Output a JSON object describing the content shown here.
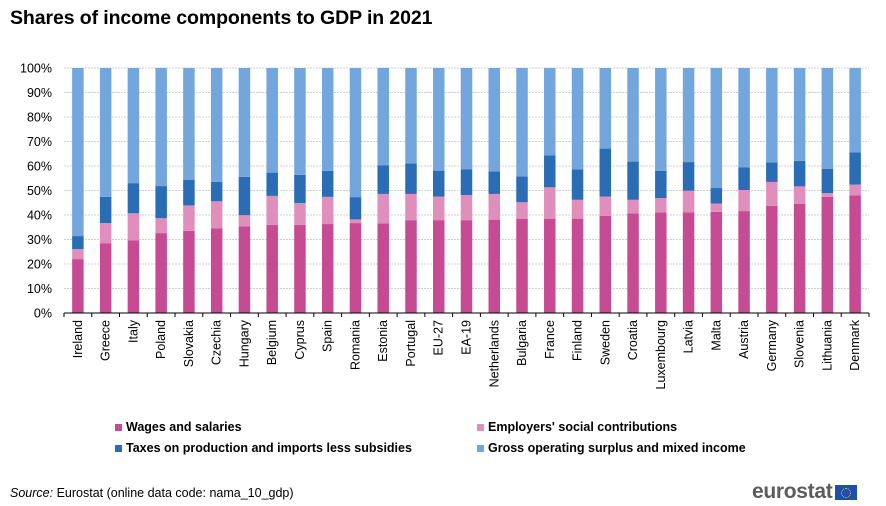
{
  "chart_data": {
    "type": "bar",
    "stacked": true,
    "percent_stacked": true,
    "title": "Shares of income components to GDP in 2021",
    "xlabel": "",
    "ylabel": "",
    "ylim": [
      0,
      100
    ],
    "yticks": [
      "0%",
      "10%",
      "20%",
      "30%",
      "40%",
      "50%",
      "60%",
      "70%",
      "80%",
      "90%",
      "100%"
    ],
    "grid": true,
    "legend_position": "bottom",
    "categories": [
      "Ireland",
      "Greece",
      "Italy",
      "Poland",
      "Slovakia",
      "Czechia",
      "Hungary",
      "Belgium",
      "Cyprus",
      "Spain",
      "Romania",
      "Estonia",
      "Portugal",
      "EU-27",
      "EA-19",
      "Netherlands",
      "Bulgaria",
      "France",
      "Finland",
      "Sweden",
      "Croatia",
      "Luxembourg",
      "Latvia",
      "Malta",
      "Austria",
      "Germany",
      "Slovenia",
      "Lithuania",
      "Denmark"
    ],
    "series": [
      {
        "name": "Wages and salaries",
        "color": "#c64b93",
        "values": [
          22.0,
          28.5,
          29.6,
          32.6,
          33.5,
          34.6,
          35.4,
          35.9,
          36.0,
          36.3,
          36.7,
          36.6,
          37.9,
          37.9,
          37.9,
          38.1,
          38.5,
          38.5,
          38.5,
          39.7,
          40.6,
          41.1,
          41.1,
          41.3,
          41.6,
          43.7,
          44.5,
          47.4,
          48.0
        ]
      },
      {
        "name": "Employers' social contributions",
        "color": "#e08fbd",
        "values": [
          4.1,
          8.2,
          11.1,
          6.1,
          10.4,
          11.0,
          4.5,
          11.9,
          8.9,
          11.1,
          1.5,
          12.0,
          10.7,
          9.6,
          10.2,
          10.5,
          6.7,
          12.8,
          7.7,
          7.8,
          5.6,
          5.8,
          8.8,
          3.4,
          8.6,
          9.8,
          7.2,
          1.5,
          4.4
        ]
      },
      {
        "name": "Taxes on production and imports less subsidies",
        "color": "#2a6db5",
        "values": [
          5.3,
          10.7,
          12.3,
          13.1,
          10.4,
          7.9,
          15.7,
          9.5,
          11.5,
          10.6,
          9.1,
          11.6,
          12.4,
          10.6,
          10.6,
          9.2,
          10.6,
          13.1,
          12.4,
          19.6,
          15.6,
          11.1,
          11.7,
          6.3,
          9.3,
          8.0,
          10.4,
          10.0,
          13.2
        ]
      },
      {
        "name": "Gross operating surplus and mixed income",
        "color": "#72a6dd",
        "values": [
          68.6,
          52.6,
          47.0,
          48.2,
          45.7,
          46.5,
          44.4,
          42.7,
          43.6,
          42.0,
          52.7,
          39.8,
          39.0,
          41.9,
          41.3,
          42.2,
          44.2,
          35.6,
          41.4,
          32.9,
          38.2,
          42.0,
          38.4,
          49.0,
          40.5,
          38.5,
          37.9,
          41.1,
          34.4
        ]
      }
    ]
  },
  "legend": {
    "items": [
      {
        "label": "Wages and salaries",
        "color": "#c64b93"
      },
      {
        "label": "Employers' social contributions",
        "color": "#e08fbd"
      },
      {
        "label": "Taxes on production and imports less subsidies",
        "color": "#2a6db5"
      },
      {
        "label": "Gross operating surplus and mixed income",
        "color": "#72a6dd"
      }
    ]
  },
  "footer": {
    "source_label": "Source:",
    "source_text": " Eurostat (online data code: nama_10_gdp)",
    "logo_text": "eurostat"
  }
}
